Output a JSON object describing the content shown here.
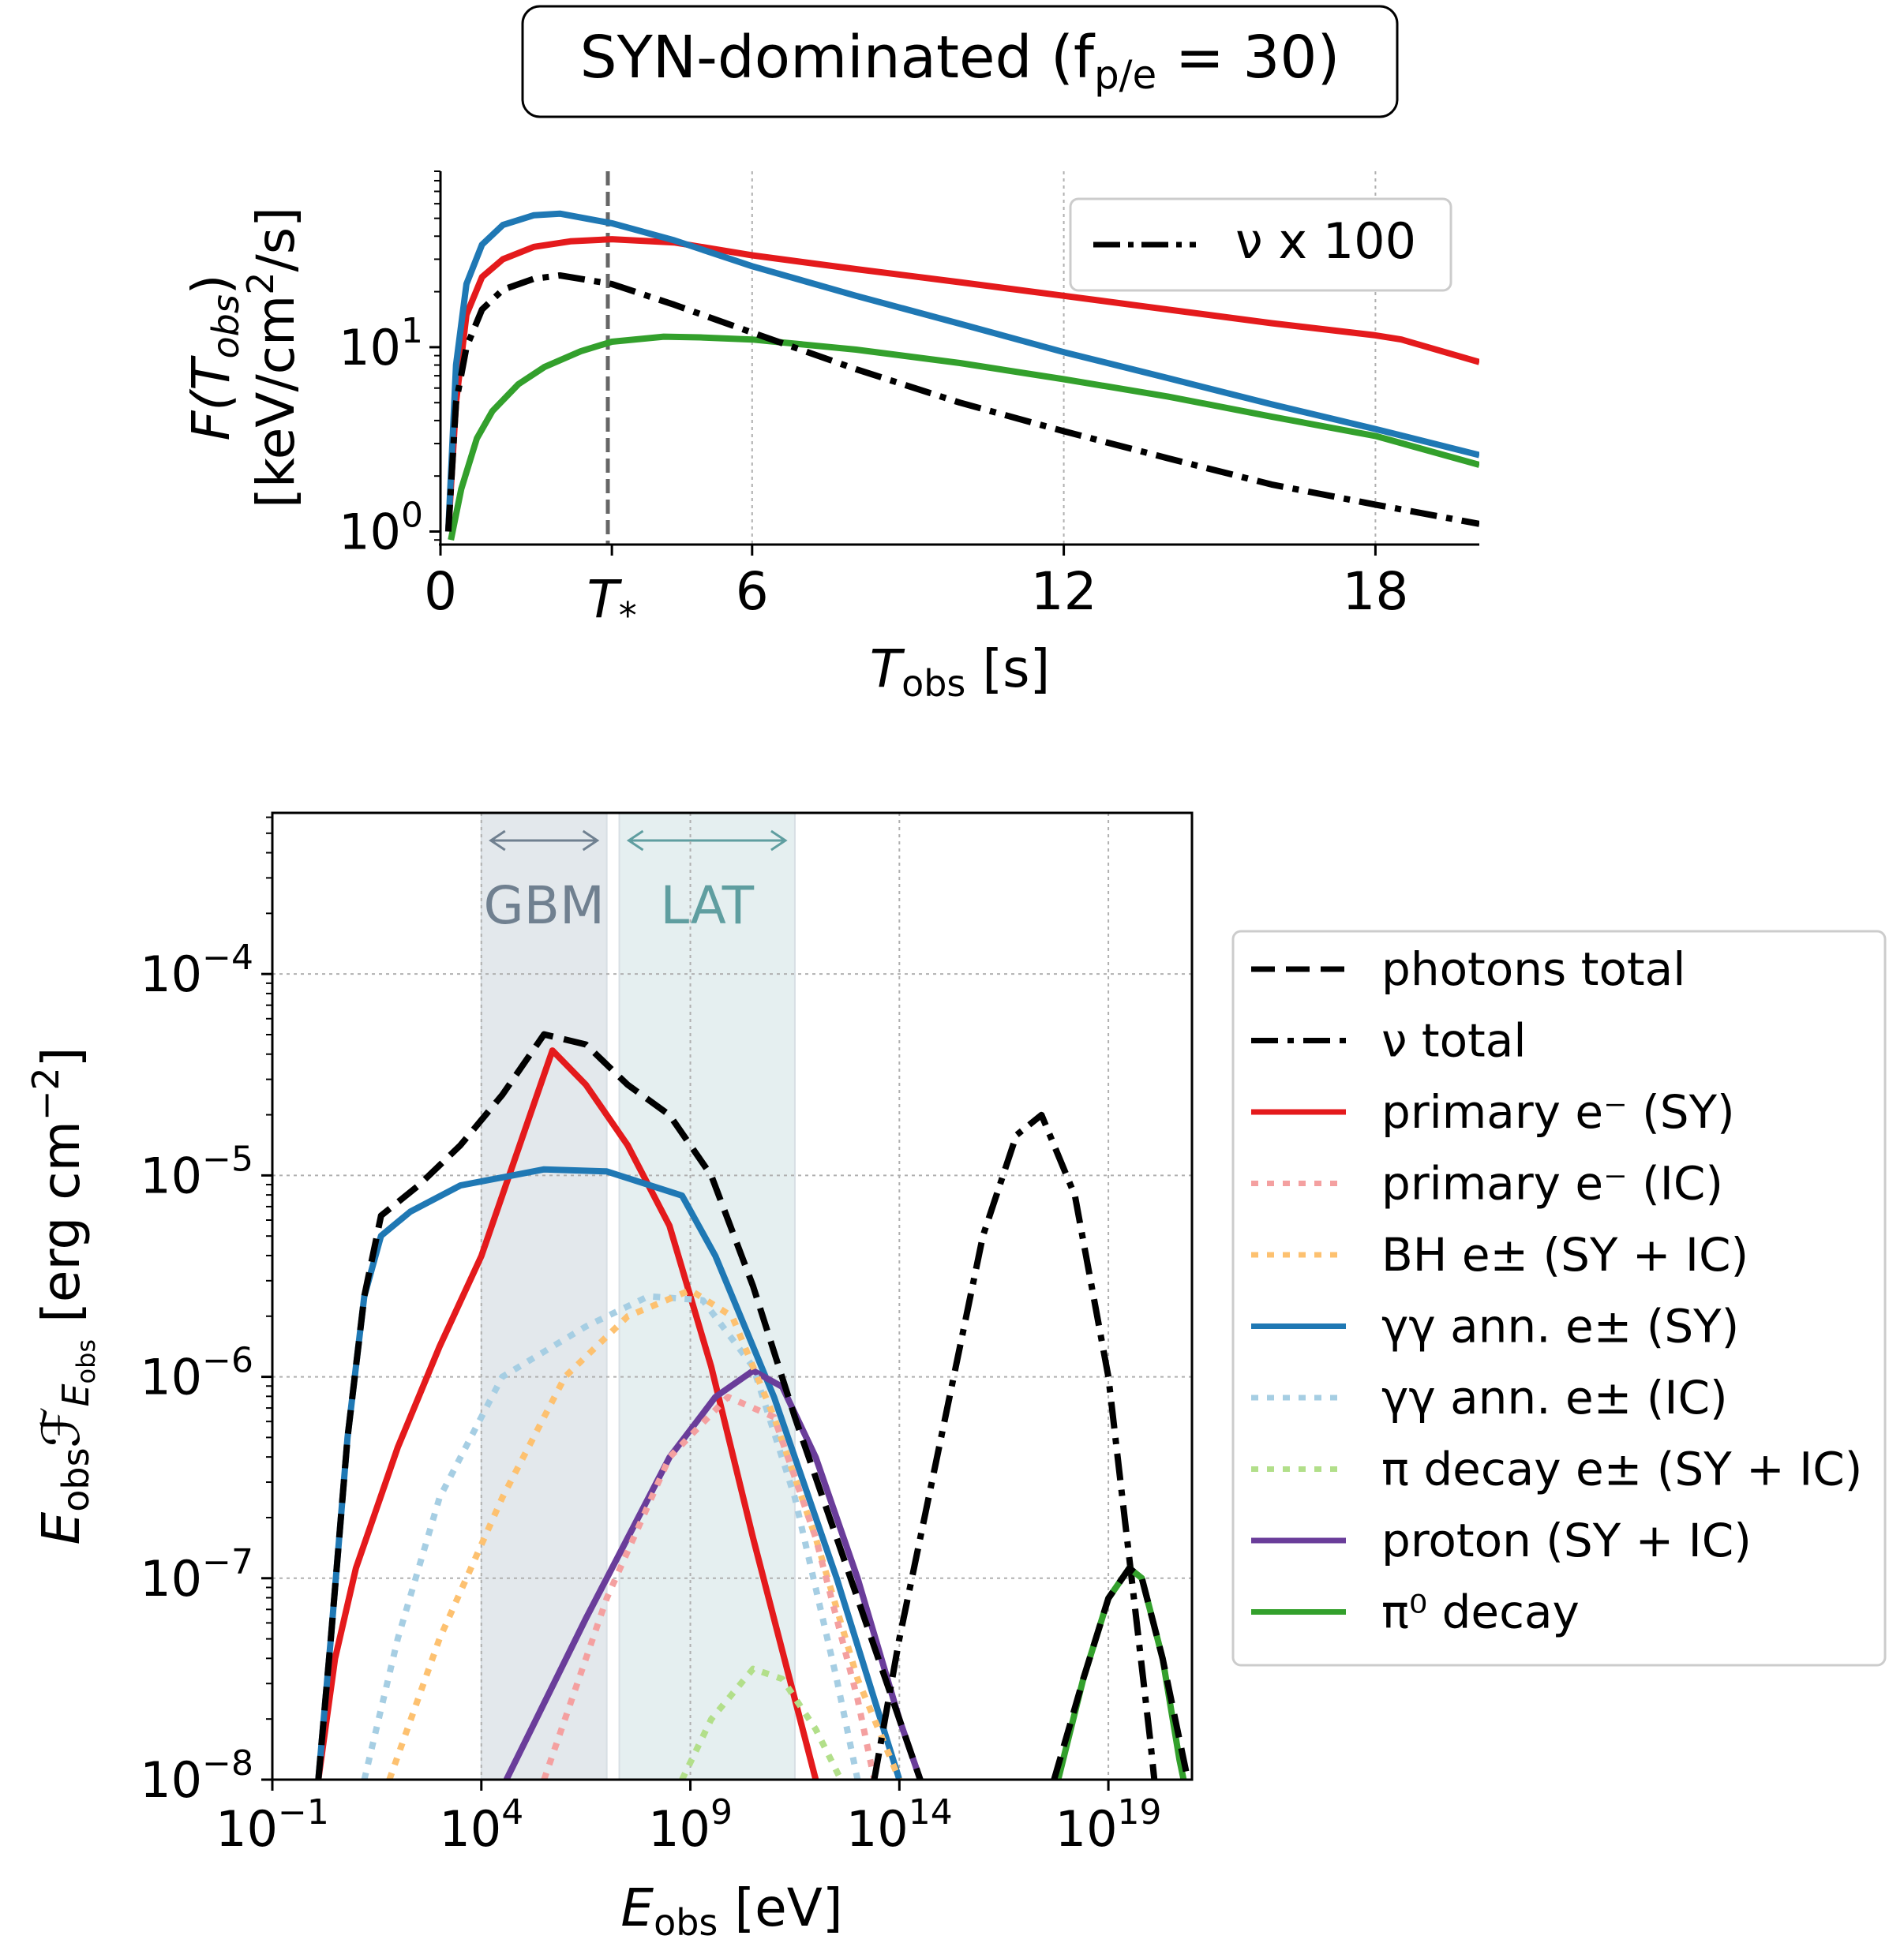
{
  "title": "SYN-dominated (f",
  "title_sub": "p/e",
  "title_rest": " = 30)",
  "chart_data": [
    {
      "type": "line",
      "yscale": "log",
      "xlim": [
        0,
        20
      ],
      "ylim": [
        0.85,
        90
      ],
      "xticks": [
        0,
        6,
        12,
        18
      ],
      "xtick_labels": [
        "0",
        "6",
        "12",
        "18"
      ],
      "special_xtick": {
        "value": 3.3,
        "label": "T",
        "sub": "*"
      },
      "xlabel_main": "T",
      "xlabel_sub": "obs",
      "xlabel_unit": " [s]",
      "ylabel_line1": "F(T",
      "ylabel_line1_sub": "obs",
      "ylabel_line1_end": ")",
      "ylabel_line2": "[keV/cm",
      "ylabel_line2_sup": "2",
      "ylabel_line2_end": "/s]",
      "ytick_labels": [
        {
          "base": "10",
          "exp": "0",
          "value": 1
        },
        {
          "base": "10",
          "exp": "1",
          "value": 10
        }
      ],
      "grid_x": [
        6,
        12,
        18
      ],
      "vline": 3.3,
      "legend": {
        "placement": "top-right",
        "label": "ν x 100"
      },
      "series": [
        {
          "color": "#e41a1c",
          "style": "solid",
          "points": [
            [
              0.15,
              1.0
            ],
            [
              0.3,
              5
            ],
            [
              0.5,
              15
            ],
            [
              0.8,
              24
            ],
            [
              1.2,
              30
            ],
            [
              1.8,
              35
            ],
            [
              2.5,
              37.5
            ],
            [
              3.3,
              38.5
            ],
            [
              4.5,
              37
            ],
            [
              6,
              31.5
            ],
            [
              8,
              26.5
            ],
            [
              10,
              22.5
            ],
            [
              12,
              19
            ],
            [
              14,
              16
            ],
            [
              16,
              13.5
            ],
            [
              18,
              11.6
            ],
            [
              18.5,
              11
            ],
            [
              20,
              8.3
            ]
          ]
        },
        {
          "color": "#1f78b4",
          "style": "solid",
          "points": [
            [
              0.15,
              1.0
            ],
            [
              0.3,
              8
            ],
            [
              0.5,
              22
            ],
            [
              0.8,
              36
            ],
            [
              1.2,
              46
            ],
            [
              1.8,
              52
            ],
            [
              2.3,
              53
            ],
            [
              3.3,
              47
            ],
            [
              4.5,
              38
            ],
            [
              6,
              27.5
            ],
            [
              8,
              19
            ],
            [
              10,
              13.4
            ],
            [
              12,
              9.4
            ],
            [
              14,
              6.8
            ],
            [
              16,
              4.9
            ],
            [
              18,
              3.6
            ],
            [
              20,
              2.6
            ]
          ]
        },
        {
          "color": "#33a02c",
          "style": "solid",
          "points": [
            [
              0.2,
              0.9
            ],
            [
              0.4,
              1.7
            ],
            [
              0.7,
              3.2
            ],
            [
              1,
              4.5
            ],
            [
              1.5,
              6.3
            ],
            [
              2,
              7.8
            ],
            [
              2.7,
              9.5
            ],
            [
              3.3,
              10.7
            ],
            [
              4.3,
              11.4
            ],
            [
              5,
              11.3
            ],
            [
              6,
              11
            ],
            [
              8,
              9.7
            ],
            [
              10,
              8.2
            ],
            [
              12,
              6.7
            ],
            [
              14,
              5.4
            ],
            [
              16,
              4.2
            ],
            [
              18,
              3.3
            ],
            [
              20,
              2.3
            ]
          ]
        },
        {
          "color": "#000000",
          "style": "dashdot",
          "points": [
            [
              0.15,
              1.0
            ],
            [
              0.3,
              5
            ],
            [
              0.5,
              10
            ],
            [
              0.8,
              16
            ],
            [
              1.2,
              20.5
            ],
            [
              1.8,
              23.5
            ],
            [
              2.3,
              24.5
            ],
            [
              3.3,
              22
            ],
            [
              4.5,
              17
            ],
            [
              6,
              12
            ],
            [
              8,
              7.6
            ],
            [
              10,
              5
            ],
            [
              12,
              3.5
            ],
            [
              14,
              2.5
            ],
            [
              16,
              1.8
            ],
            [
              18,
              1.4
            ],
            [
              20,
              1.1
            ]
          ]
        }
      ]
    },
    {
      "type": "line",
      "yscale": "log",
      "xscale": "log",
      "xlim_log10": [
        -1,
        21
      ],
      "ylim_log10": [
        -8,
        -3.2
      ],
      "xticks_log10": [
        -1,
        4,
        9,
        14,
        19
      ],
      "xtick_exps": [
        "−1",
        "4",
        "9",
        "14",
        "19"
      ],
      "yticks_log10": [
        -8,
        -7,
        -6,
        -5,
        -4
      ],
      "ytick_exps": [
        "−8",
        "−7",
        "−6",
        "−5",
        "−4"
      ],
      "tick_base": "10",
      "xlabel_main": "E",
      "xlabel_sub": "obs",
      "xlabel_unit": " [eV]",
      "ylabel_main": "E",
      "ylabel_sub": "obs",
      "ylabel_f": "ℱ",
      "ylabel_fsub": "E",
      "ylabel_fsubsub": "obs",
      "ylabel_unit": " [erg cm",
      "ylabel_unit_sup": "−2",
      "ylabel_unit_end": "]",
      "bands": [
        {
          "label": "GBM",
          "from": 4,
          "to": 7,
          "color": "#e3e8ec",
          "text_color": "#708090"
        },
        {
          "label": "LAT",
          "from": 7.3,
          "to": 11.5,
          "color": "#e5eff0",
          "text_color": "#5f9ea0"
        }
      ],
      "legend": {
        "placement": "right",
        "entries": [
          {
            "label": "photons total",
            "color": "#000000",
            "style": "dashed"
          },
          {
            "label": "ν total",
            "color": "#000000",
            "style": "dashdot"
          },
          {
            "label": "primary e⁻ (SY)",
            "color": "#e41a1c",
            "style": "solid"
          },
          {
            "label": "primary e⁻ (IC)",
            "color": "#f4a0a0",
            "style": "dotted"
          },
          {
            "label": "BH e± (SY + IC)",
            "color": "#fdc170",
            "style": "dotted"
          },
          {
            "label": "γγ ann. e± (SY)",
            "color": "#1f78b4",
            "style": "solid"
          },
          {
            "label": "γγ ann. e± (IC)",
            "color": "#a6cee3",
            "style": "dotted"
          },
          {
            "label": "π decay e± (SY + IC)",
            "color": "#b2df8a",
            "style": "dotted"
          },
          {
            "label": "proton (SY + IC)",
            "color": "#6a3d9a",
            "style": "solid"
          },
          {
            "label": "π⁰ decay",
            "color": "#33a02c",
            "style": "solid"
          }
        ]
      },
      "series": [
        {
          "name": "primary e⁻ (SY)",
          "color": "#e41a1c",
          "style": "solid",
          "points": [
            [
              0.1,
              -8
            ],
            [
              0.5,
              -7.4
            ],
            [
              1,
              -6.95
            ],
            [
              1.5,
              -6.65
            ],
            [
              2,
              -6.35
            ],
            [
              3,
              -5.85
            ],
            [
              4,
              -5.4
            ],
            [
              5,
              -4.8
            ],
            [
              5.7,
              -4.38
            ],
            [
              6.5,
              -4.55
            ],
            [
              7.5,
              -4.85
            ],
            [
              8.5,
              -5.25
            ],
            [
              9.5,
              -5.95
            ],
            [
              10.5,
              -6.8
            ],
            [
              11.5,
              -7.6
            ],
            [
              12,
              -8
            ]
          ]
        },
        {
          "name": "γγ ann. e± (SY)",
          "color": "#1f78b4",
          "style": "solid",
          "points": [
            [
              0.1,
              -8
            ],
            [
              0.4,
              -7.3
            ],
            [
              0.8,
              -6.3
            ],
            [
              1.2,
              -5.6
            ],
            [
              1.6,
              -5.3
            ],
            [
              2.3,
              -5.18
            ],
            [
              3.5,
              -5.05
            ],
            [
              5.5,
              -4.97
            ],
            [
              7,
              -4.98
            ],
            [
              8.8,
              -5.1
            ],
            [
              9.6,
              -5.4
            ],
            [
              11,
              -6.1
            ],
            [
              12.5,
              -7
            ],
            [
              14,
              -8
            ]
          ]
        },
        {
          "name": "proton (SY + IC)",
          "color": "#6a3d9a",
          "style": "solid",
          "points": [
            [
              4.6,
              -8
            ],
            [
              6.5,
              -7.2
            ],
            [
              8.5,
              -6.4
            ],
            [
              9.6,
              -6.1
            ],
            [
              10.5,
              -5.97
            ],
            [
              11.2,
              -6.05
            ],
            [
              12,
              -6.4
            ],
            [
              13,
              -7
            ],
            [
              14,
              -7.7
            ],
            [
              14.5,
              -8
            ]
          ]
        },
        {
          "name": "γγ ann. e± (IC)",
          "color": "#a6cee3",
          "style": "dotted",
          "points": [
            [
              1.2,
              -8
            ],
            [
              2,
              -7.3
            ],
            [
              3,
              -6.6
            ],
            [
              4.5,
              -6.0
            ],
            [
              6.5,
              -5.75
            ],
            [
              8,
              -5.6
            ],
            [
              9.3,
              -5.62
            ],
            [
              10.5,
              -5.95
            ],
            [
              11.5,
              -6.6
            ],
            [
              12.5,
              -7.5
            ],
            [
              13,
              -8
            ]
          ]
        },
        {
          "name": "BH e± (SY + IC)",
          "color": "#fdc170",
          "style": "dotted",
          "points": [
            [
              1.8,
              -8
            ],
            [
              3,
              -7.3
            ],
            [
              4.5,
              -6.6
            ],
            [
              6,
              -6.0
            ],
            [
              7.5,
              -5.7
            ],
            [
              9,
              -5.57
            ],
            [
              10,
              -5.7
            ],
            [
              11,
              -6.2
            ],
            [
              12,
              -6.8
            ],
            [
              13,
              -7.5
            ],
            [
              14,
              -8
            ]
          ]
        },
        {
          "name": "primary e⁻ (IC)",
          "color": "#f4a0a0",
          "style": "dotted",
          "points": [
            [
              5.5,
              -8
            ],
            [
              7,
              -7.1
            ],
            [
              8.5,
              -6.4
            ],
            [
              9.9,
              -6.1
            ],
            [
              11,
              -6.2
            ],
            [
              12,
              -6.8
            ],
            [
              13,
              -7.6
            ],
            [
              13.4,
              -8
            ]
          ]
        },
        {
          "name": "π decay e± (SY + IC)",
          "color": "#b2df8a",
          "style": "dotted",
          "points": [
            [
              8.8,
              -8
            ],
            [
              9.5,
              -7.7
            ],
            [
              10.5,
              -7.45
            ],
            [
              11.2,
              -7.5
            ],
            [
              12,
              -7.75
            ],
            [
              12.6,
              -8
            ]
          ]
        },
        {
          "name": "ν total",
          "color": "#000000",
          "style": "dashdot",
          "points": [
            [
              13.4,
              -8
            ],
            [
              14,
              -7.3
            ],
            [
              15,
              -6.3
            ],
            [
              16,
              -5.3
            ],
            [
              16.8,
              -4.8
            ],
            [
              17.4,
              -4.7
            ],
            [
              18.2,
              -5.1
            ],
            [
              19,
              -6
            ],
            [
              19.5,
              -6.9
            ],
            [
              20,
              -7.8
            ],
            [
              20.1,
              -8
            ]
          ]
        },
        {
          "name": "π⁰ decay",
          "color": "#33a02c",
          "style": "solid",
          "points": [
            [
              17.8,
              -8
            ],
            [
              18.4,
              -7.5
            ],
            [
              19,
              -7.1
            ],
            [
              19.5,
              -6.95
            ],
            [
              19.8,
              -7.0
            ],
            [
              20.3,
              -7.4
            ],
            [
              20.7,
              -7.9
            ],
            [
              20.8,
              -8
            ]
          ]
        },
        {
          "name": "photons total",
          "color": "#000000",
          "style": "dashed",
          "points": [
            [
              0.1,
              -8
            ],
            [
              0.4,
              -7.3
            ],
            [
              0.8,
              -6.3
            ],
            [
              1.2,
              -5.6
            ],
            [
              1.6,
              -5.2
            ],
            [
              2.5,
              -5.05
            ],
            [
              3.5,
              -4.85
            ],
            [
              4.5,
              -4.6
            ],
            [
              5.5,
              -4.3
            ],
            [
              6.5,
              -4.35
            ],
            [
              7.5,
              -4.55
            ],
            [
              8.5,
              -4.7
            ],
            [
              9.5,
              -5.0
            ],
            [
              10.5,
              -5.55
            ],
            [
              11.5,
              -6.2
            ],
            [
              12.5,
              -6.8
            ],
            [
              13.5,
              -7.4
            ],
            [
              14.5,
              -8
            ]
          ]
        },
        {
          "name": "photons high",
          "color": "#000000",
          "style": "dashed",
          "points": [
            [
              17.7,
              -8
            ],
            [
              18.4,
              -7.5
            ],
            [
              19,
              -7.1
            ],
            [
              19.5,
              -6.95
            ],
            [
              19.8,
              -7.0
            ],
            [
              20.3,
              -7.4
            ],
            [
              20.9,
              -8
            ]
          ]
        }
      ]
    }
  ]
}
